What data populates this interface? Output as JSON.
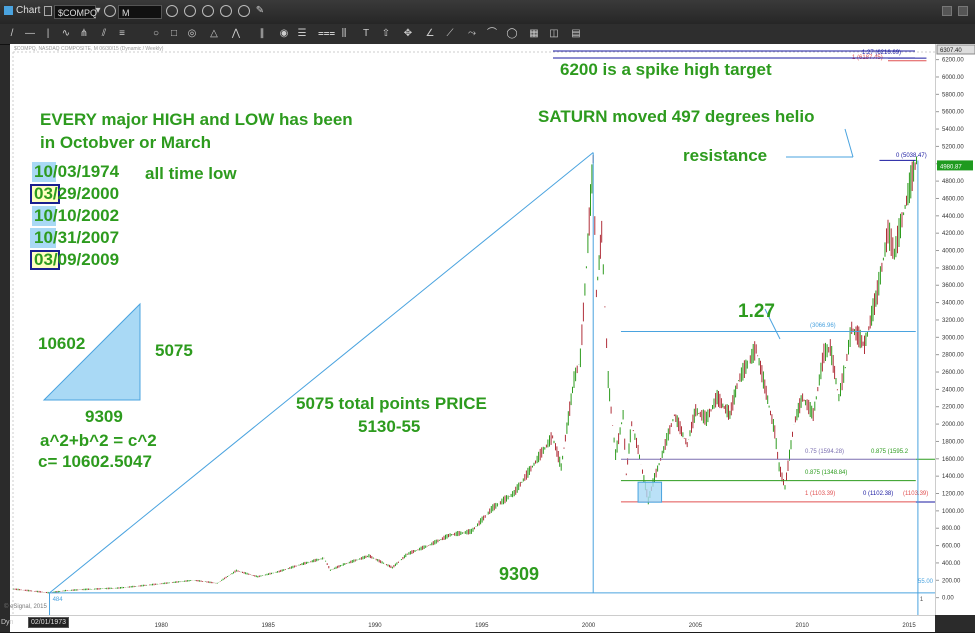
{
  "window": {
    "title": "Chart",
    "symbol": "$COMPQ",
    "interval": "M",
    "footer_date": "02/01/1973",
    "dyn_label": "Dyn",
    "copyright": "© eSignal, 2015"
  },
  "chart_header": "$COMPQ, NASDAQ COMPOSITE, M 06/30/15 (Dynamic / Weekly)",
  "notes": {
    "main_line1": "EVERY major HIGH and LOW has been",
    "main_line2": "in Octobver or March",
    "dates": [
      {
        "prefix": "10",
        "rest": "/03/1974",
        "style": "light"
      },
      {
        "prefix": "03",
        "rest": "/29/2000",
        "style": "dark"
      },
      {
        "prefix": "10",
        "rest": "/10/2002",
        "style": "light"
      },
      {
        "prefix": "10",
        "rest": "/31/2007",
        "style": "light"
      },
      {
        "prefix": "03",
        "rest": "/09/2009",
        "style": "dark"
      }
    ],
    "all_time_low": "all time low",
    "tri_hyp": "10602",
    "tri_side": "5075",
    "tri_base": "9309",
    "pythag": "a^2+b^2 = c^2",
    "c_value": "c= 10602.5047",
    "total_points": "5075 total points PRICE",
    "range": "5130-55",
    "base_9309": "9309",
    "spike_target": "6200 is a spike high target",
    "saturn": "SATURN moved 497 degrees helio",
    "resistance": "resistance",
    "fib_127": "1.27"
  },
  "chart_data": {
    "type": "line",
    "title": "",
    "xlabel": "",
    "ylabel": "",
    "x_ticks": [
      "1980",
      "1985",
      "1990",
      "1995",
      "2000",
      "2005",
      "2010",
      "2015"
    ],
    "y_ticks": [
      "6200.00",
      "6000.00",
      "5800.00",
      "5600.00",
      "5400.00",
      "5200.00",
      "5000.00",
      "4800.00",
      "4600.00",
      "4400.00",
      "4200.00",
      "4000.00",
      "3800.00",
      "3600.00",
      "3400.00",
      "3200.00",
      "3000.00",
      "2800.00",
      "2600.00",
      "2400.00",
      "2200.00",
      "2000.00",
      "1800.00",
      "1600.00",
      "1400.00",
      "1200.00",
      "1000.00",
      "800.00",
      "600.00",
      "400.00",
      "200.00",
      "0.00",
      "-200.00"
    ],
    "ylim": [
      -200,
      6380
    ],
    "xlim": [
      1972.9,
      2016.2
    ],
    "last_price_label": "4980.87",
    "top_price_label": "6307.40",
    "series": [
      {
        "values": [
          [
            1973.0,
            100
          ],
          [
            1974.75,
            55
          ],
          [
            1975.5,
            80
          ],
          [
            1976.5,
            95
          ],
          [
            1978.0,
            110
          ],
          [
            1980.0,
            160
          ],
          [
            1981.5,
            200
          ],
          [
            1982.6,
            165
          ],
          [
            1983.5,
            310
          ],
          [
            1984.5,
            240
          ],
          [
            1985.5,
            300
          ],
          [
            1986.5,
            380
          ],
          [
            1987.6,
            455
          ],
          [
            1987.9,
            315
          ],
          [
            1988.5,
            380
          ],
          [
            1989.7,
            480
          ],
          [
            1990.8,
            345
          ],
          [
            1991.5,
            500
          ],
          [
            1992.5,
            600
          ],
          [
            1993.5,
            720
          ],
          [
            1994.5,
            760
          ],
          [
            1995.5,
            1030
          ],
          [
            1996.5,
            1200
          ],
          [
            1997.5,
            1560
          ],
          [
            1998.3,
            1850
          ],
          [
            1998.7,
            1500
          ],
          [
            1999.3,
            2500
          ],
          [
            1999.6,
            2750
          ],
          [
            1999.95,
            4069
          ],
          [
            2000.2,
            5048
          ],
          [
            2000.35,
            3500
          ],
          [
            2000.6,
            4200
          ],
          [
            2000.9,
            2500
          ],
          [
            2001.25,
            1640
          ],
          [
            2001.6,
            2100
          ],
          [
            2001.75,
            1420
          ],
          [
            2002.0,
            2000
          ],
          [
            2002.3,
            1700
          ],
          [
            2002.78,
            1114
          ],
          [
            2003.0,
            1320
          ],
          [
            2003.5,
            1700
          ],
          [
            2004.0,
            2100
          ],
          [
            2004.6,
            1760
          ],
          [
            2005.0,
            2150
          ],
          [
            2005.5,
            2050
          ],
          [
            2006.0,
            2300
          ],
          [
            2006.6,
            2100
          ],
          [
            2007.0,
            2500
          ],
          [
            2007.83,
            2859
          ],
          [
            2008.3,
            2350
          ],
          [
            2008.7,
            1900
          ],
          [
            2008.9,
            1500
          ],
          [
            2009.18,
            1268
          ],
          [
            2009.6,
            2000
          ],
          [
            2010.0,
            2300
          ],
          [
            2010.5,
            2100
          ],
          [
            2011.0,
            2800
          ],
          [
            2011.3,
            2870
          ],
          [
            2011.7,
            2300
          ],
          [
            2012.0,
            2650
          ],
          [
            2012.3,
            3100
          ],
          [
            2012.9,
            2900
          ],
          [
            2013.5,
            3500
          ],
          [
            2014.0,
            4200
          ],
          [
            2014.3,
            3950
          ],
          [
            2014.8,
            4500
          ],
          [
            2015.2,
            4900
          ],
          [
            2015.4,
            5100
          ]
        ]
      }
    ],
    "fib_levels": [
      {
        "label": "1.27 (6216.69)",
        "value": 6216.69,
        "color": "#1a1aa0"
      },
      {
        "label": "1 (6187.45)",
        "value": 6187.45,
        "color": "#e05050"
      },
      {
        "label": "0 (5038.47)",
        "value": 5038.47,
        "color": "#1a1aa0"
      },
      {
        "label": "(3066.96)",
        "value": 3066.96,
        "color": "#4aa3df"
      },
      {
        "label": "0.75 (1594.28)",
        "value": 1594.28,
        "color": "#7b6fb0"
      },
      {
        "label": "0.875 (1595.2",
        "value": 1595.2,
        "color": "#2d9b1e"
      },
      {
        "label": "0.875 (1348.84)",
        "value": 1348.84,
        "color": "#2d9b1e"
      },
      {
        "label": "1 (1103.39)",
        "value": 1103.39,
        "color": "#e05050"
      },
      {
        "label": "0 (1102.38)",
        "value": 1102.38,
        "color": "#1a1aa0"
      },
      {
        "label": "(1103.39)",
        "value": 1103.39,
        "color": "#e05050"
      },
      {
        "label": "55.00",
        "value": 55.0,
        "color": "#4aa3df"
      }
    ],
    "x_markers": [
      "484",
      "1"
    ],
    "colors": {
      "up": "#2d9b1e",
      "down": "#b0303a",
      "trend": "#4aa3df",
      "text": "#2d9b1e"
    }
  }
}
